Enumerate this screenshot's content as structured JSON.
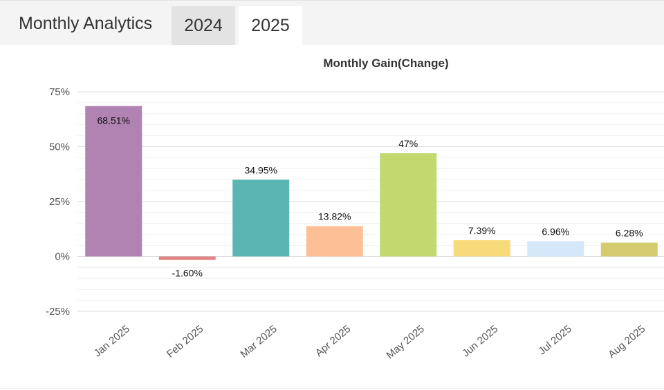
{
  "header": {
    "title": "Monthly Analytics",
    "tabs": [
      {
        "label": "2024",
        "active": false
      },
      {
        "label": "2025",
        "active": true
      }
    ]
  },
  "chart_data": {
    "type": "bar",
    "title": "Monthly Gain(Change)",
    "xlabel": "",
    "ylabel": "",
    "ylim": [
      -25,
      75
    ],
    "yticks": [
      -25,
      0,
      25,
      50,
      75
    ],
    "ytick_labels": [
      "-25%",
      "0%",
      "25%",
      "50%",
      "75%"
    ],
    "categories": [
      "Jan 2025",
      "Feb 2025",
      "Mar 2025",
      "Apr 2025",
      "May 2025",
      "Jun 2025",
      "Jul 2025",
      "Aug 2025"
    ],
    "values": [
      68.51,
      -1.6,
      34.95,
      13.82,
      47,
      7.39,
      6.96,
      6.28
    ],
    "data_labels": [
      "68.51%",
      "-1.60%",
      "34.95%",
      "13.82%",
      "47%",
      "7.39%",
      "6.96%",
      "6.28%"
    ],
    "colors": [
      "#b083b3",
      "#e08585",
      "#5ab5b3",
      "#fdbf96",
      "#c1d96f",
      "#f7db7a",
      "#d4e8fa",
      "#d3cb6e"
    ],
    "grid": true
  }
}
